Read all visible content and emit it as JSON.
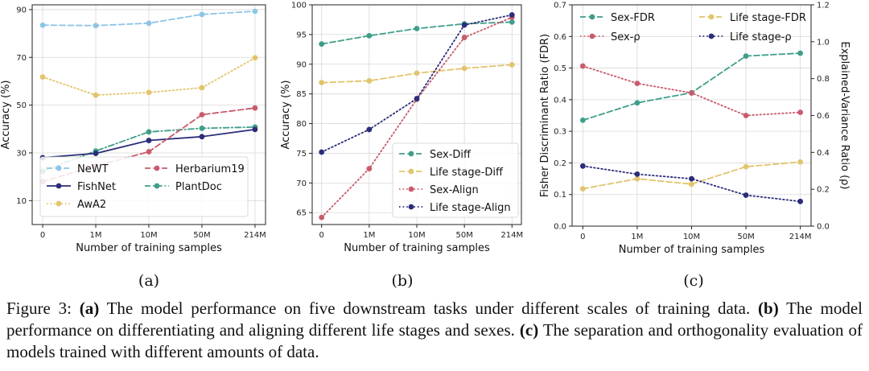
{
  "figure": {
    "caption": {
      "prefix": "Figure 3:",
      "parts": [
        {
          "label": "(a)",
          "text": "The model performance on five downstream tasks under different scales of training data."
        },
        {
          "label": "(b)",
          "text": "The model performance on differentiating and aligning different life stages and sexes."
        },
        {
          "label": "(c)",
          "text": "The separation and orthogonality evaluation of models trained with different amounts of data."
        }
      ]
    }
  },
  "colors": {
    "light_blue": "#8ec4e6",
    "gold": "#e2c46c",
    "teal": "#3f9e8a",
    "navy": "#2b2d7a",
    "red": "#c85c6c"
  },
  "chart_data": [
    {
      "type": "line",
      "panel_label": "(a)",
      "categories": [
        "0",
        "1M",
        "10M",
        "50M",
        "214M"
      ],
      "xlabel": "Number of training samples",
      "ylabel": "Accuracy (%)",
      "ylim": [
        0,
        92
      ],
      "yticks": [
        10,
        30,
        50,
        70,
        90
      ],
      "grid": true,
      "legend": "lower-right",
      "legend_order": [
        0,
        3,
        1,
        4,
        2
      ],
      "series": [
        {
          "name": "NeWT",
          "values": [
            83.5,
            83.3,
            84.3,
            88.0,
            89.3
          ],
          "color": "#8ec4e6",
          "dash": "dashed"
        },
        {
          "name": "AwA2",
          "values": [
            61.8,
            54.2,
            55.3,
            57.3,
            69.8
          ],
          "color": "#e2c46c",
          "dash": "dotted"
        },
        {
          "name": "PlantDoc",
          "values": [
            22.3,
            30.8,
            38.8,
            40.3,
            40.8
          ],
          "color": "#3f9e8a",
          "dash": "dashdot"
        },
        {
          "name": "FishNet",
          "values": [
            28.0,
            29.8,
            35.2,
            36.8,
            39.8
          ],
          "color": "#2b2d7a",
          "dash": "solid"
        },
        {
          "name": "Herbarium19",
          "values": [
            18.0,
            24.5,
            30.5,
            46.0,
            48.8
          ],
          "color": "#c85c6c",
          "dash": "dashed"
        }
      ]
    },
    {
      "type": "line",
      "panel_label": "(b)",
      "categories": [
        "0",
        "1M",
        "10M",
        "50M",
        "214M"
      ],
      "xlabel": "Number of training samples",
      "ylabel": "Accuracy (%)",
      "ylim": [
        63,
        100
      ],
      "yticks": [
        65,
        70,
        75,
        80,
        85,
        90,
        95,
        100
      ],
      "grid": true,
      "legend": "lower-right",
      "series": [
        {
          "name": "Sex-Diff",
          "values": [
            93.4,
            94.8,
            96.0,
            96.8,
            97.1
          ],
          "color": "#3f9e8a",
          "dash": "dashed"
        },
        {
          "name": "Life stage-Diff",
          "values": [
            86.9,
            87.2,
            88.5,
            89.3,
            89.9
          ],
          "color": "#e2c46c",
          "dash": "dashed"
        },
        {
          "name": "Sex-Align",
          "values": [
            64.2,
            72.4,
            84.1,
            94.5,
            97.9
          ],
          "color": "#c85c6c",
          "dash": "dotted"
        },
        {
          "name": "Life stage-Align",
          "values": [
            75.2,
            79.0,
            84.2,
            96.6,
            98.3
          ],
          "color": "#2b2d7a",
          "dash": "dotted"
        }
      ]
    },
    {
      "type": "line",
      "panel_label": "(c)",
      "categories": [
        "0",
        "1M",
        "10M",
        "50M",
        "214M"
      ],
      "xlabel": "Number of training samples",
      "ylabel": "Fisher Discriminant Ratio (FDR)",
      "y2label": "Explained-Variance Ratio (ρ)",
      "ylim": [
        0.0,
        0.7
      ],
      "yticks": [
        0.0,
        0.1,
        0.2,
        0.3,
        0.4,
        0.5,
        0.6,
        0.7
      ],
      "y2lim": [
        0.0,
        1.2
      ],
      "y2ticks": [
        0.0,
        0.2,
        0.4,
        0.6,
        0.8,
        1.0,
        1.2
      ],
      "grid": true,
      "legend": "top",
      "legend_order": [
        0,
        2,
        1,
        3
      ],
      "series": [
        {
          "name": "Sex-FDR",
          "axis": "left",
          "values": [
            0.335,
            0.39,
            0.422,
            0.538,
            0.547
          ],
          "color": "#3f9e8a",
          "dash": "dashed"
        },
        {
          "name": "Life stage-FDR",
          "axis": "left",
          "values": [
            0.118,
            0.15,
            0.133,
            0.188,
            0.203
          ],
          "color": "#e2c46c",
          "dash": "dashed"
        },
        {
          "name": "Sex-ρ",
          "axis": "right",
          "values": [
            0.868,
            0.774,
            0.722,
            0.6,
            0.617
          ],
          "color": "#c85c6c",
          "dash": "dotted"
        },
        {
          "name": "Life stage-ρ",
          "axis": "right",
          "values": [
            0.326,
            0.282,
            0.257,
            0.168,
            0.134
          ],
          "color": "#2b2d7a",
          "dash": "dotted"
        }
      ]
    }
  ]
}
